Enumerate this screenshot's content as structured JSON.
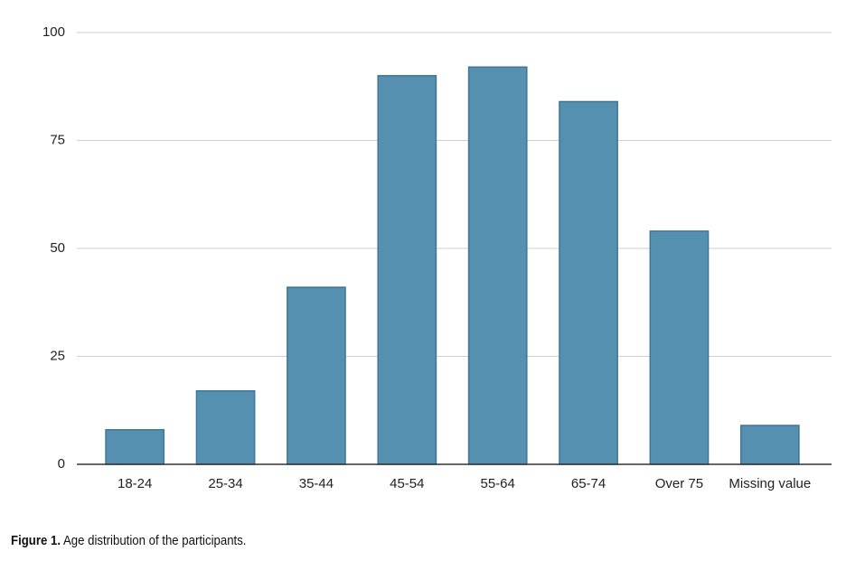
{
  "chart_data": {
    "type": "bar",
    "categories": [
      "18-24",
      "25-34",
      "35-44",
      "45-54",
      "55-64",
      "65-74",
      "Over 75",
      "Missing value"
    ],
    "values": [
      8,
      17,
      41,
      90,
      92,
      84,
      54,
      9
    ],
    "color": "#5690b0",
    "ylim": [
      0,
      100
    ],
    "yticks": [
      0,
      25,
      50,
      75,
      100
    ],
    "grid": true,
    "caption_label": "Figure 1.",
    "caption": "Age distribution of the participants."
  }
}
